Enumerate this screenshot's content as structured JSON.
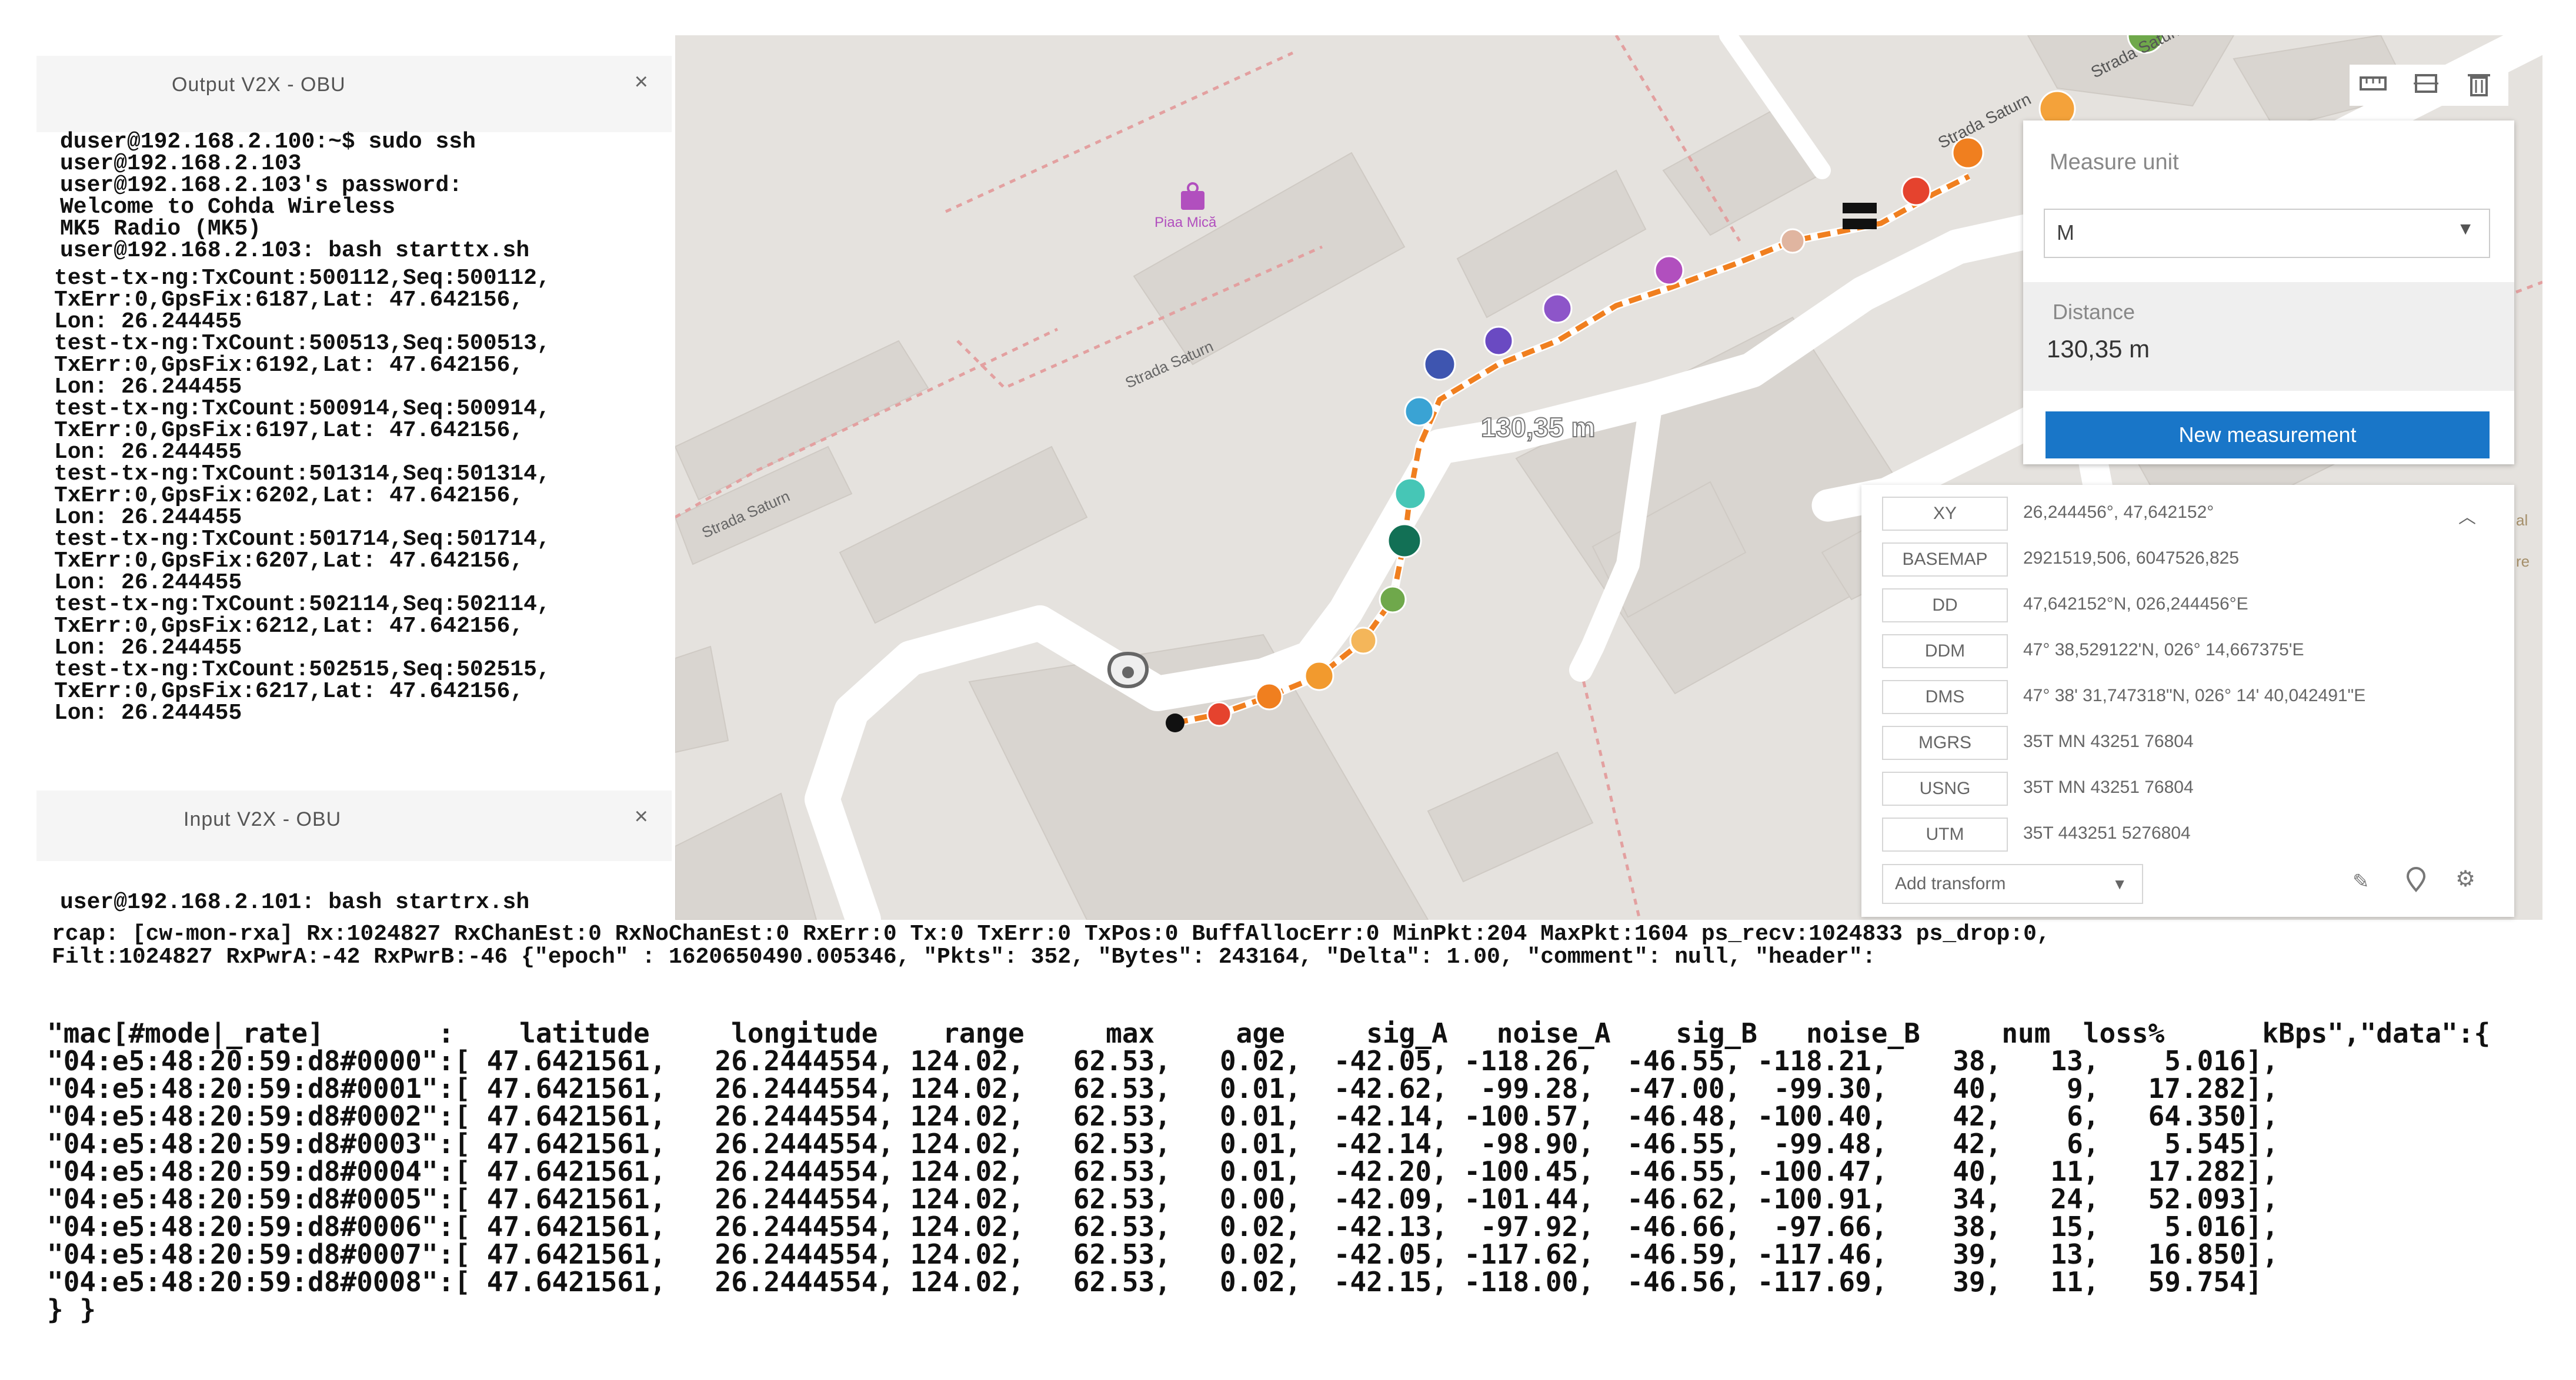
{
  "output_window": {
    "title": "Output V2X - OBU",
    "close": "×",
    "cmd_lines": [
      "duser@192.168.2.100:~$ sudo ssh",
      "user@192.168.2.103",
      "user@192.168.2.103's password:",
      "Welcome to Cohda Wireless",
      "MK5 Radio (MK5)",
      "user@192.168.2.103: bash starttx.sh"
    ],
    "log_lines": [
      "test-tx-ng:TxCount:500112,Seq:500112,",
      "TxErr:0,GpsFix:6187,Lat: 47.642156,",
      "Lon: 26.244455",
      "test-tx-ng:TxCount:500513,Seq:500513,",
      "TxErr:0,GpsFix:6192,Lat: 47.642156,",
      "Lon: 26.244455",
      "test-tx-ng:TxCount:500914,Seq:500914,",
      "TxErr:0,GpsFix:6197,Lat: 47.642156,",
      "Lon: 26.244455",
      "test-tx-ng:TxCount:501314,Seq:501314,",
      "TxErr:0,GpsFix:6202,Lat: 47.642156,",
      "Lon: 26.244455",
      "test-tx-ng:TxCount:501714,Seq:501714,",
      "TxErr:0,GpsFix:6207,Lat: 47.642156,",
      "Lon: 26.244455",
      "test-tx-ng:TxCount:502114,Seq:502114,",
      "TxErr:0,GpsFix:6212,Lat: 47.642156,",
      "Lon: 26.244455",
      "test-tx-ng:TxCount:502515,Seq:502515,",
      "TxErr:0,GpsFix:6217,Lat: 47.642156,",
      "Lon: 26.244455"
    ]
  },
  "input_window": {
    "title": "Input V2X - OBU",
    "close": "×",
    "cmd": "user@192.168.2.101: bash startrx.sh"
  },
  "map": {
    "place_label": "Piaa Mică",
    "street_labels": [
      "Strada Saturn",
      "Strada Saturn",
      "Strada Saturn",
      "Strada Saturn"
    ],
    "route_label": "130,35 m",
    "route_color": "#f07f1f",
    "edge_label_fragments": [
      "al",
      "re"
    ]
  },
  "measure": {
    "tool_icons": [
      "ruler-icon",
      "area-icon",
      "trash-icon"
    ],
    "unit_label": "Measure unit",
    "unit_value": "M",
    "distance_label": "Distance",
    "distance_value": "130,35 m",
    "new_button": "New measurement",
    "accent": "#1976c8"
  },
  "coordinates": {
    "rows": [
      {
        "tag": "XY",
        "value": "26,244456°, 47,642152°"
      },
      {
        "tag": "BASEMAP",
        "value": "2921519,506, 6047526,825"
      },
      {
        "tag": "DD",
        "value": "47,642152°N, 026,244456°E"
      },
      {
        "tag": "DDM",
        "value": "47° 38,529122'N, 026° 14,667375'E"
      },
      {
        "tag": "DMS",
        "value": "47° 38' 31,747318\"N, 026° 14' 40,042491\"E"
      },
      {
        "tag": "MGRS",
        "value": "35T MN 43251 76804"
      },
      {
        "tag": "USNG",
        "value": "35T MN 43251 76804"
      },
      {
        "tag": "UTM",
        "value": "35T 443251 5276804"
      }
    ],
    "add_transform": "Add transform"
  },
  "rx_terminal": {
    "lines": [
      "rcap: [cw-mon-rxa] Rx:1024827 RxChanEst:0 RxNoChanEst:0 RxErr:0 Tx:0 TxErr:0 TxPos:0 BuffAllocErr:0 MinPkt:204 MaxPkt:1604 ps_recv:1024833 ps_drop:0,",
      "Filt:1024827 RxPwrA:-42 RxPwrB:-46 {\"epoch\" : 1620650490.005346, \"Pkts\": 352, \"Bytes\": 243164, \"Delta\": 1.00, \"comment\": null, \"header\":"
    ]
  },
  "rx_table": {
    "header": "\"mac[#mode|_rate]       :    latitude     longitude    range     max     age     sig_A   noise_A    sig_B   noise_B     num  loss%      kBps\",\"data\":{",
    "rows": [
      "\"04:e5:48:20:59:d8#0000\":[ 47.6421561,   26.2444554, 124.02,   62.53,   0.02,  -42.05, -118.26,  -46.55, -118.21,    38,   13,    5.016],",
      "\"04:e5:48:20:59:d8#0001\":[ 47.6421561,   26.2444554, 124.02,   62.53,   0.01,  -42.62,  -99.28,  -47.00,  -99.30,    40,    9,   17.282],",
      "\"04:e5:48:20:59:d8#0002\":[ 47.6421561,   26.2444554, 124.02,   62.53,   0.01,  -42.14, -100.57,  -46.48, -100.40,    42,    6,   64.350],",
      "\"04:e5:48:20:59:d8#0003\":[ 47.6421561,   26.2444554, 124.02,   62.53,   0.01,  -42.14,  -98.90,  -46.55,  -99.48,    42,    6,    5.545],",
      "\"04:e5:48:20:59:d8#0004\":[ 47.6421561,   26.2444554, 124.02,   62.53,   0.01,  -42.20, -100.45,  -46.55, -100.47,    40,   11,   17.282],",
      "\"04:e5:48:20:59:d8#0005\":[ 47.6421561,   26.2444554, 124.02,   62.53,   0.00,  -42.09, -101.44,  -46.62, -100.91,    34,   24,   52.093],",
      "\"04:e5:48:20:59:d8#0006\":[ 47.6421561,   26.2444554, 124.02,   62.53,   0.02,  -42.13,  -97.92,  -46.66,  -97.66,    38,   15,    5.016],",
      "\"04:e5:48:20:59:d8#0007\":[ 47.6421561,   26.2444554, 124.02,   62.53,   0.02,  -42.05, -117.62,  -46.59, -117.46,    39,   13,   16.850],",
      "\"04:e5:48:20:59:d8#0008\":[ 47.6421561,   26.2444554, 124.02,   62.53,   0.02,  -42.15, -118.00,  -46.56, -117.69,    39,   11,   59.754]"
    ],
    "footer": "} }"
  }
}
